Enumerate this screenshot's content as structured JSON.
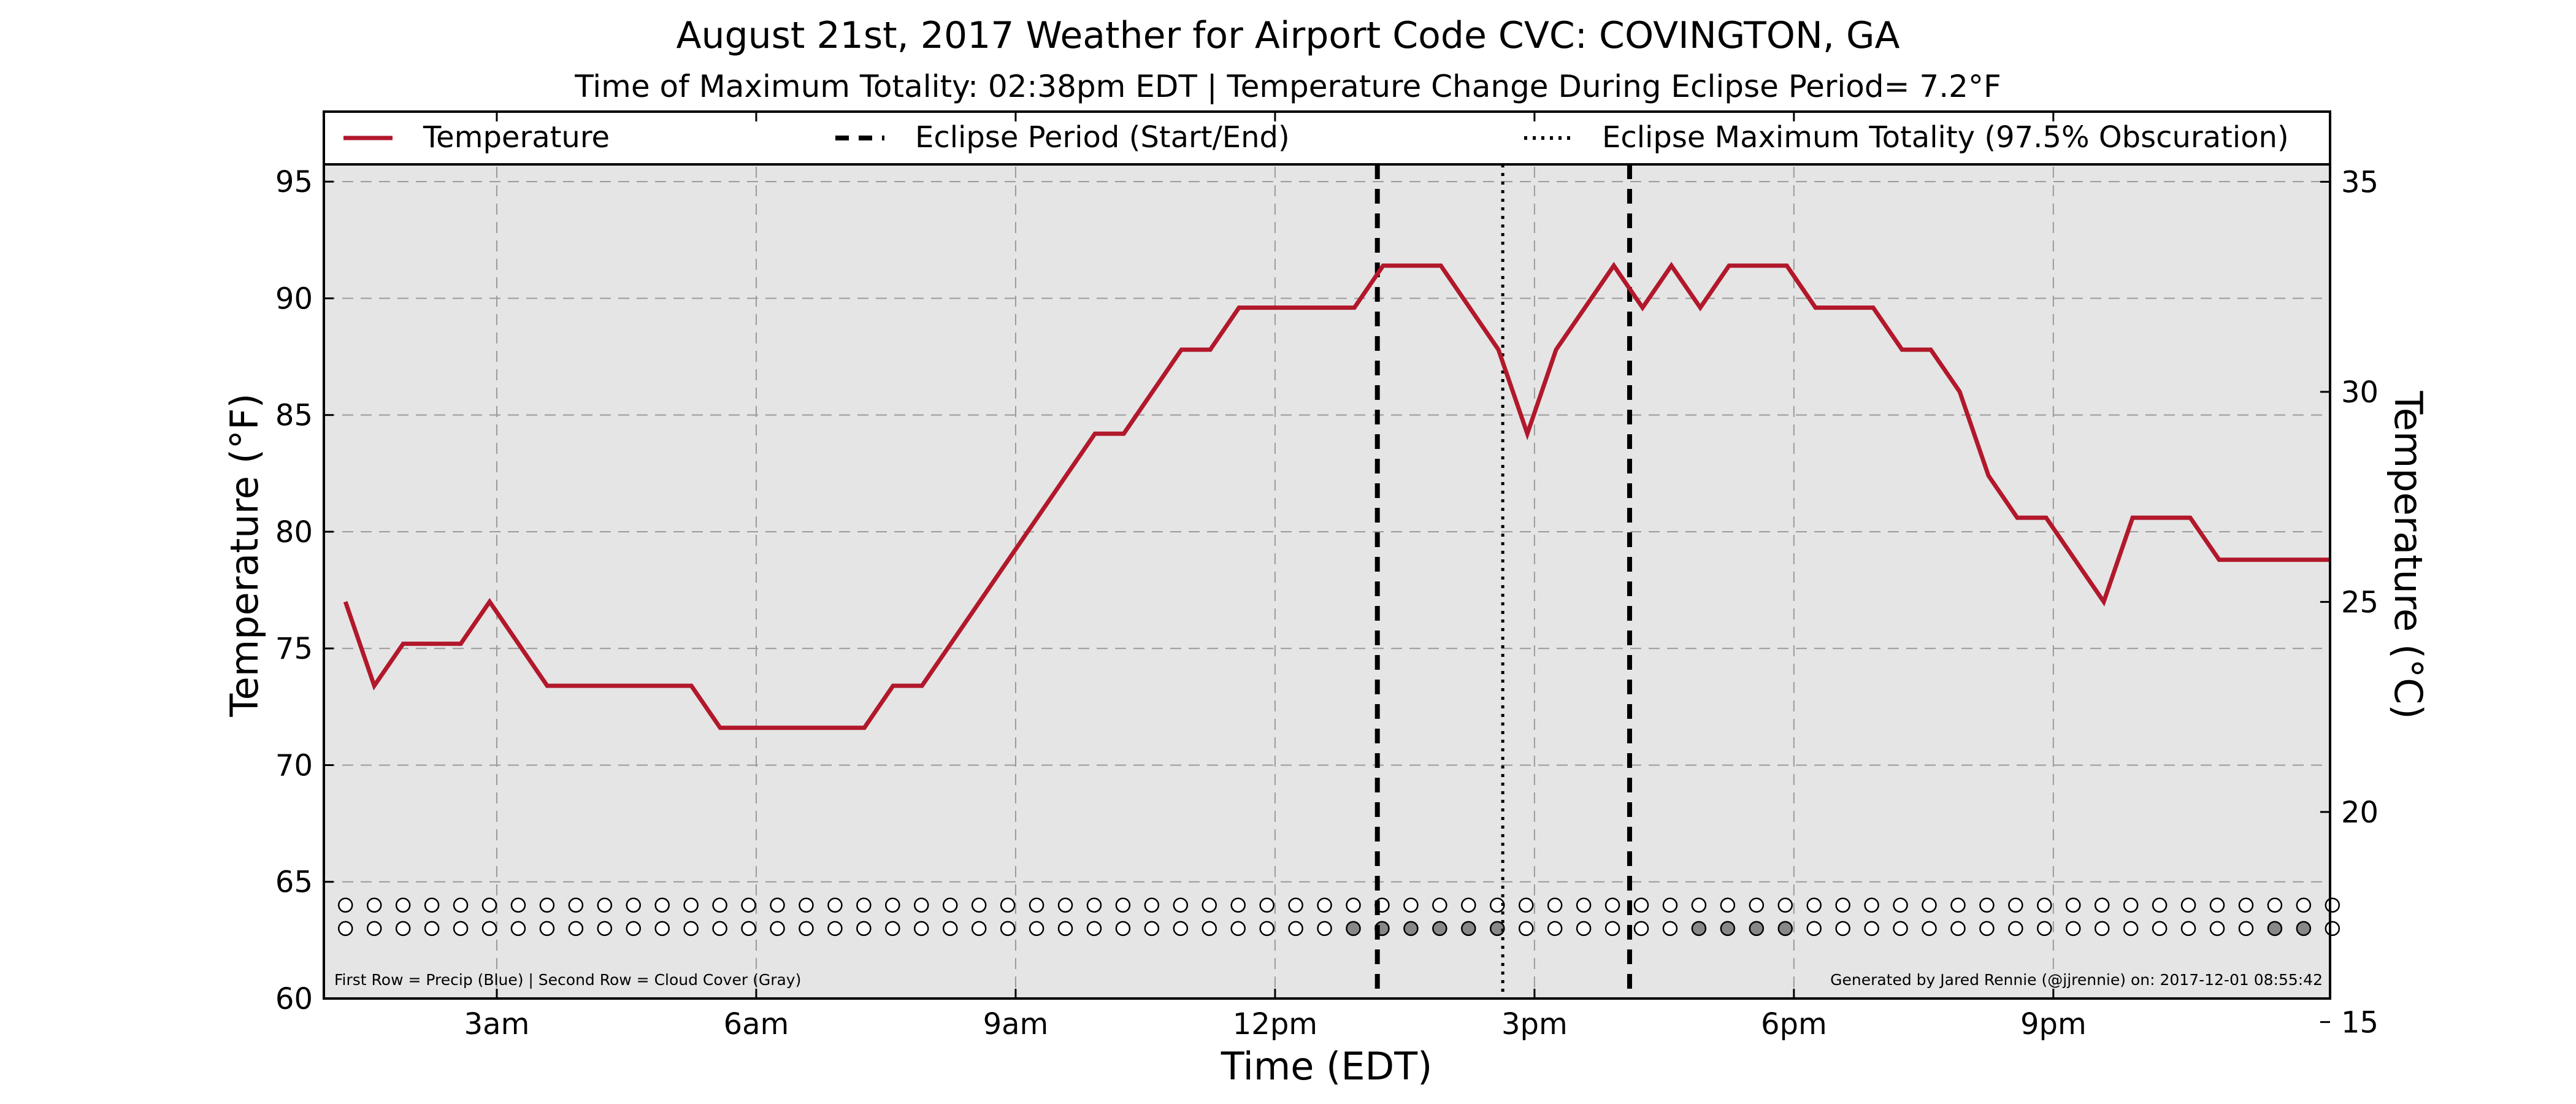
{
  "chart_data": {
    "type": "line",
    "title": "August 21st, 2017 Weather for Airport Code CVC: COVINGTON, GA",
    "subtitle": "Time of Maximum Totality: 02:38pm EDT | Temperature Change During Eclipse Period= 7.2°F",
    "xlabel": "Time (EDT)",
    "ylabel": "Temperature (°F)",
    "ylabel_right": "Temperature (°C)",
    "x_unit": "hours after midnight EDT",
    "xlim": [
      1,
      24.2
    ],
    "ylim": [
      60,
      98
    ],
    "ylim_right_celsius": [
      15.56,
      36.67
    ],
    "x_ticks": [
      {
        "x": 3,
        "label": "3am"
      },
      {
        "x": 6,
        "label": "6am"
      },
      {
        "x": 9,
        "label": "9am"
      },
      {
        "x": 12,
        "label": "12pm"
      },
      {
        "x": 15,
        "label": "3pm"
      },
      {
        "x": 18,
        "label": "6pm"
      },
      {
        "x": 21,
        "label": "9pm"
      }
    ],
    "y_ticks": [
      60,
      65,
      70,
      75,
      80,
      85,
      90,
      95
    ],
    "y_ticks_right": [
      15,
      20,
      25,
      30,
      35
    ],
    "grid": true,
    "legend_position": "top",
    "legend": [
      {
        "label": "Temperature",
        "style": "solid"
      },
      {
        "label": "Eclipse Period (Start/End)",
        "style": "dashed"
      },
      {
        "label": "Eclipse Maximum Totality (97.5% Obscuration)",
        "style": "dotted"
      }
    ],
    "series": [
      {
        "name": "Temperature",
        "color": "#b2182b",
        "points": [
          [
            1.25,
            77
          ],
          [
            1.583,
            73.4
          ],
          [
            1.917,
            75.2
          ],
          [
            2.583,
            75.2
          ],
          [
            2.917,
            77
          ],
          [
            3.583,
            73.4
          ],
          [
            5.25,
            73.4
          ],
          [
            5.583,
            71.6
          ],
          [
            7.25,
            71.6
          ],
          [
            7.583,
            73.4
          ],
          [
            7.917,
            73.4
          ],
          [
            9.917,
            84.2
          ],
          [
            10.25,
            84.2
          ],
          [
            10.917,
            87.8
          ],
          [
            11.25,
            87.8
          ],
          [
            11.583,
            89.6
          ],
          [
            12.917,
            89.6
          ],
          [
            13.25,
            91.4
          ],
          [
            13.917,
            91.4
          ],
          [
            14.583,
            87.8
          ],
          [
            14.917,
            84.2
          ],
          [
            15.25,
            87.8
          ],
          [
            15.917,
            91.4
          ],
          [
            16.25,
            89.6
          ],
          [
            16.583,
            91.4
          ],
          [
            16.917,
            89.6
          ],
          [
            17.25,
            91.4
          ],
          [
            17.917,
            91.4
          ],
          [
            18.25,
            89.6
          ],
          [
            18.917,
            89.6
          ],
          [
            19.25,
            87.8
          ],
          [
            19.583,
            87.8
          ],
          [
            19.917,
            86
          ],
          [
            20.25,
            82.4
          ],
          [
            20.583,
            80.6
          ],
          [
            20.917,
            80.6
          ],
          [
            21.583,
            77
          ],
          [
            21.917,
            80.6
          ],
          [
            22.583,
            80.6
          ],
          [
            22.917,
            78.8
          ],
          [
            24.2,
            78.8
          ]
        ]
      }
    ],
    "vertical_lines": [
      {
        "x": 13.183,
        "style": "dashed",
        "meaning": "Eclipse Period (Start/End)"
      },
      {
        "x": 14.633,
        "style": "dotted",
        "meaning": "Eclipse Maximum Totality (97.5% Obscuration)"
      },
      {
        "x": 16.1,
        "style": "dashed",
        "meaning": "Eclipse Period (Start/End)"
      }
    ],
    "indicator_rows": {
      "x_start": 1.25,
      "x_step": 0.333,
      "count": 70,
      "precip_y": 64,
      "cloud_y": 63,
      "precip_filled_indices": [],
      "cloud_filled_indices": [
        35,
        36,
        37,
        38,
        39,
        40,
        47,
        48,
        49,
        50,
        67,
        68
      ],
      "precip_color": "#2b6fd6",
      "cloud_color": "#888888"
    },
    "footnote_left": "First Row = Precip (Blue) | Second Row = Cloud Cover (Gray)",
    "footnote_right": "Generated by Jared Rennie (@jjrennie) on: 2017-12-01 08:55:42"
  }
}
